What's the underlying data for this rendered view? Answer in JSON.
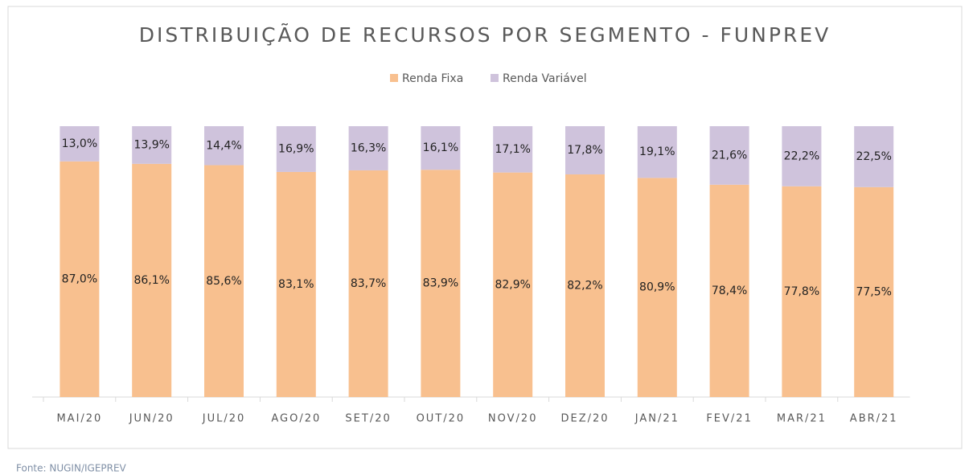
{
  "chart_data": {
    "type": "stacked_bar_100",
    "title": "DISTRIBUIÇÃO DE RECURSOS POR SEGMENTO - FUNPREV",
    "categories": [
      "MAI/20",
      "JUN/20",
      "JUL/20",
      "AGO/20",
      "SET/20",
      "OUT/20",
      "NOV/20",
      "DEZ/20",
      "JAN/21",
      "FEV/21",
      "MAR/21",
      "ABR/21"
    ],
    "series": [
      {
        "name": "Renda Fixa",
        "color": "#f8c08f",
        "values": [
          87.0,
          86.1,
          85.6,
          83.1,
          83.7,
          83.9,
          82.9,
          82.2,
          80.9,
          78.4,
          77.8,
          77.5
        ],
        "value_labels": [
          "87,0%",
          "86,1%",
          "85,6%",
          "83,1%",
          "83,7%",
          "83,9%",
          "82,9%",
          "82,2%",
          "80,9%",
          "78,4%",
          "77,8%",
          "77,5%"
        ]
      },
      {
        "name": "Renda Variável",
        "color": "#cfc3dc",
        "values": [
          13.0,
          13.9,
          14.4,
          16.9,
          16.3,
          16.1,
          17.1,
          17.8,
          19.1,
          21.6,
          22.2,
          22.5
        ],
        "value_labels": [
          "13,0%",
          "13,9%",
          "14,4%",
          "16,9%",
          "16,3%",
          "16,1%",
          "17,1%",
          "17,8%",
          "19,1%",
          "21,6%",
          "22,2%",
          "22,5%"
        ]
      }
    ],
    "legend": "top",
    "source": "Fonte: NUGIN/IGEPREV"
  }
}
